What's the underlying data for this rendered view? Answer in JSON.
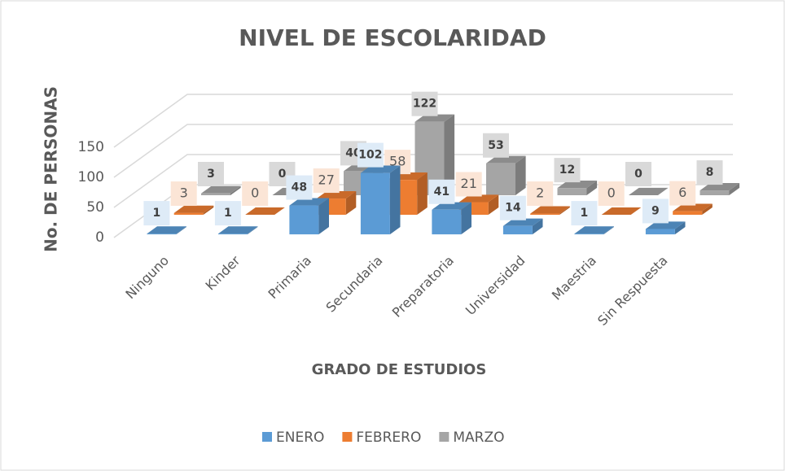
{
  "chart_data": {
    "type": "bar3d",
    "title": "NIVEL DE ESCOLARIDAD",
    "x_label": "GRADO DE ESTUDIOS",
    "y_label": "No. DE PERSONAS",
    "categories": [
      "Ninguno",
      "Kinder",
      "Primaria",
      "Secundaria",
      "Preparatoria",
      "Universidad",
      "Maestria",
      "Sin Respuesta"
    ],
    "series": [
      {
        "name": "ENERO",
        "color": "#5b9bd5",
        "values": [
          1,
          1,
          48,
          102,
          41,
          14,
          1,
          9
        ]
      },
      {
        "name": "FEBRERO",
        "color": "#ed7d31",
        "values": [
          3,
          0,
          27,
          58,
          21,
          2,
          0,
          6
        ]
      },
      {
        "name": "MARZO",
        "color": "#a5a5a5",
        "values": [
          3,
          0,
          40,
          122,
          53,
          12,
          0,
          8
        ]
      }
    ],
    "ylim": [
      0,
      150
    ],
    "yticks": [
      0,
      50,
      100,
      150
    ],
    "grid": true,
    "legend": "bottom"
  }
}
